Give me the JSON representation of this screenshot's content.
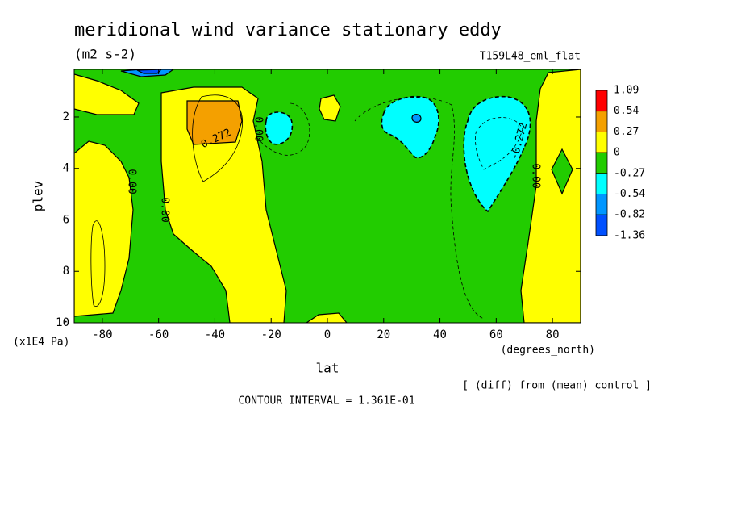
{
  "chart_data": {
    "type": "contour",
    "title": "meridional wind variance  stationary eddy",
    "subtitle": "(m2 s-2)",
    "run_label": "T159L48_eml_flat",
    "x_label": "lat",
    "x_units": "(degrees_north)",
    "y_label": "plev",
    "y_units": "(x1E4 Pa)",
    "note": "[ (diff) from (mean) control ]",
    "contour_interval": "CONTOUR INTERVAL = 1.361E-01",
    "xlim": [
      -90,
      90
    ],
    "xticks": [
      -80,
      -60,
      -40,
      -20,
      0,
      20,
      40,
      60,
      80
    ],
    "ylim": [
      10,
      0.15
    ],
    "yticks": [
      2,
      4,
      6,
      8,
      10
    ],
    "levels": [
      1.09,
      0.54,
      0.27,
      0,
      -0.27,
      -0.54,
      -0.82,
      -1.36
    ],
    "colors": [
      "#ff0000",
      "#f4a000",
      "#ffff00",
      "#22cc00",
      "#00ffff",
      "#0096ff",
      "#0050ff"
    ],
    "contour_labels": [
      "0.272",
      "0.00",
      "0.00",
      "0.00",
      "-0.272",
      "0.00"
    ]
  }
}
